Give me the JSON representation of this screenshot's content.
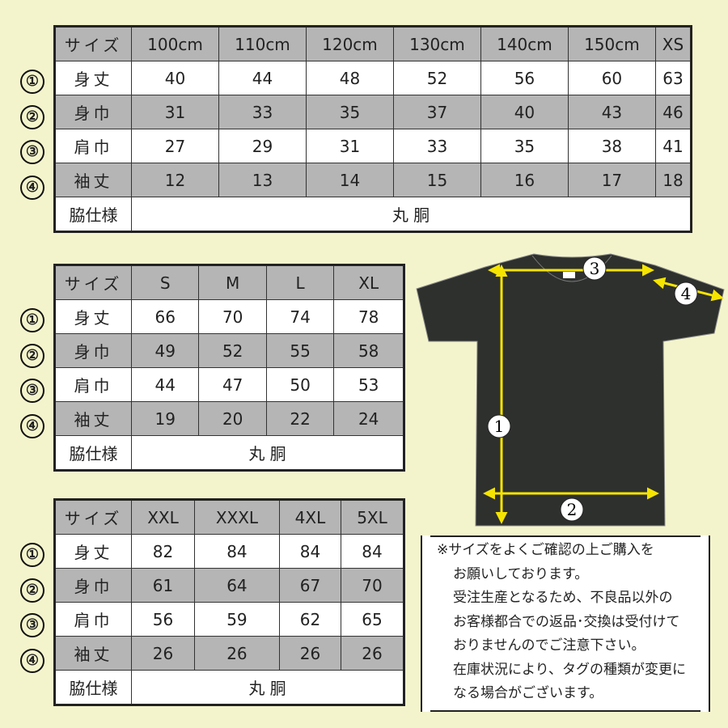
{
  "markers": [
    "①",
    "②",
    "③",
    "④"
  ],
  "tables": [
    {
      "header": [
        "サイズ",
        "100cm",
        "110cm",
        "120cm",
        "130cm",
        "140cm",
        "150cm",
        "XS"
      ],
      "rows": [
        {
          "label": "身丈",
          "values": [
            "40",
            "44",
            "48",
            "52",
            "56",
            "60",
            "63"
          ]
        },
        {
          "label": "身巾",
          "values": [
            "31",
            "33",
            "35",
            "37",
            "40",
            "43",
            "46"
          ]
        },
        {
          "label": "肩巾",
          "values": [
            "27",
            "29",
            "31",
            "33",
            "35",
            "38",
            "41"
          ]
        },
        {
          "label": "袖丈",
          "values": [
            "12",
            "13",
            "14",
            "15",
            "16",
            "17",
            "18"
          ]
        }
      ],
      "footer": {
        "label": "脇仕様",
        "value": "丸 胴"
      }
    },
    {
      "header": [
        "サイズ",
        "S",
        "M",
        "L",
        "XL"
      ],
      "rows": [
        {
          "label": "身丈",
          "values": [
            "66",
            "70",
            "74",
            "78"
          ]
        },
        {
          "label": "身巾",
          "values": [
            "49",
            "52",
            "55",
            "58"
          ]
        },
        {
          "label": "肩巾",
          "values": [
            "44",
            "47",
            "50",
            "53"
          ]
        },
        {
          "label": "袖丈",
          "values": [
            "19",
            "20",
            "22",
            "24"
          ]
        }
      ],
      "footer": {
        "label": "脇仕様",
        "value": "丸 胴"
      }
    },
    {
      "header": [
        "サイズ",
        "XXL",
        "XXXL",
        "4XL",
        "5XL"
      ],
      "rows": [
        {
          "label": "身丈",
          "values": [
            "82",
            "84",
            "84",
            "84"
          ]
        },
        {
          "label": "身巾",
          "values": [
            "61",
            "64",
            "67",
            "70"
          ]
        },
        {
          "label": "肩巾",
          "values": [
            "56",
            "59",
            "62",
            "65"
          ]
        },
        {
          "label": "袖丈",
          "values": [
            "26",
            "26",
            "26",
            "26"
          ]
        }
      ],
      "footer": {
        "label": "脇仕様",
        "value": "丸 胴"
      }
    }
  ],
  "diagram": {
    "labels": [
      "1",
      "2",
      "3",
      "4"
    ],
    "shirt_color": "#2e302e",
    "arrow_color": "#f5e400"
  },
  "note": {
    "lines": [
      "※サイズをよくご確認の上ご購入を",
      "お願いしております。",
      "受注生産となるため、不良品以外の",
      "お客様都合での返品･交換は受付けて",
      "おりませんのでご注意下さい。",
      "在庫状況により、タグの種類が変更に",
      "なる場合がございます。"
    ]
  },
  "colors": {
    "background": "#f4f4cc",
    "header_gray": "#b5b5b5"
  }
}
